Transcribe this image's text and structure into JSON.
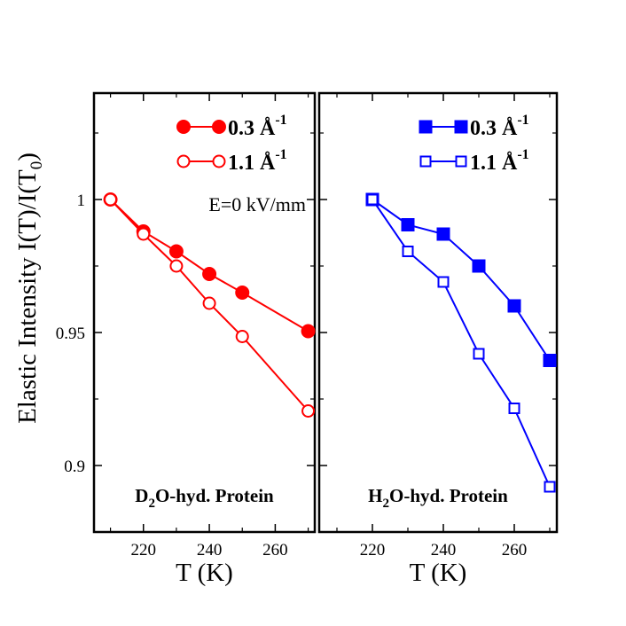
{
  "chart_data": {
    "ylabel": "Elastic Intensity  I(T)/I(T₀)",
    "ylabel_parts": {
      "main": "Elastic Intensity  I(T)/I(T",
      "sub": "0",
      "close": ")"
    },
    "ylim": [
      0.875,
      1.04
    ],
    "yticks": [
      0.9,
      0.95,
      1.0
    ],
    "ytick_labels": [
      "0.9",
      "0.95",
      "1"
    ],
    "panels": [
      {
        "id": "d2o",
        "type": "line",
        "title": "D₂O-hyd. Protein",
        "title_parts": {
          "pre": "D",
          "sub": "2",
          "post": "O-hyd. Protein"
        },
        "xlabel": "T (K)",
        "xlim": [
          205,
          272
        ],
        "xticks": [
          220,
          240,
          260
        ],
        "xtick_labels": [
          "220",
          "240",
          "260"
        ],
        "annotation": "E=0 kV/mm",
        "color": "#ff0000",
        "marker_shape": "circle",
        "legend_position": "top-right",
        "series": [
          {
            "name": "0.3 Å⁻¹",
            "q": "0.3",
            "filled": true,
            "x": [
              210,
              220,
              230,
              240,
              250,
              270
            ],
            "y": [
              1.0,
              0.988,
              0.9805,
              0.972,
              0.965,
              0.9505
            ]
          },
          {
            "name": "1.1 Å⁻¹",
            "q": "1.1",
            "filled": false,
            "x": [
              210,
              220,
              230,
              240,
              250,
              270
            ],
            "y": [
              1.0,
              0.987,
              0.975,
              0.961,
              0.9485,
              0.9205
            ]
          }
        ]
      },
      {
        "id": "h2o",
        "type": "line",
        "title": "H₂O-hyd. Protein",
        "title_parts": {
          "pre": "H",
          "sub": "2",
          "post": "O-hyd. Protein"
        },
        "xlabel": "T (K)",
        "xlim": [
          205,
          272
        ],
        "xticks": [
          220,
          240,
          260
        ],
        "xtick_labels": [
          "220",
          "240",
          "260"
        ],
        "color": "#0000ff",
        "marker_shape": "square",
        "legend_position": "top-right",
        "series": [
          {
            "name": "0.3 Å⁻¹",
            "q": "0.3",
            "filled": true,
            "x": [
              220,
              230,
              240,
              250,
              260,
              270
            ],
            "y": [
              1.0,
              0.9905,
              0.987,
              0.975,
              0.96,
              0.9395
            ]
          },
          {
            "name": "1.1 Å⁻¹",
            "q": "1.1",
            "filled": false,
            "x": [
              220,
              230,
              240,
              250,
              260,
              270
            ],
            "y": [
              1.0,
              0.9805,
              0.969,
              0.942,
              0.9215,
              0.892
            ]
          }
        ]
      }
    ]
  }
}
